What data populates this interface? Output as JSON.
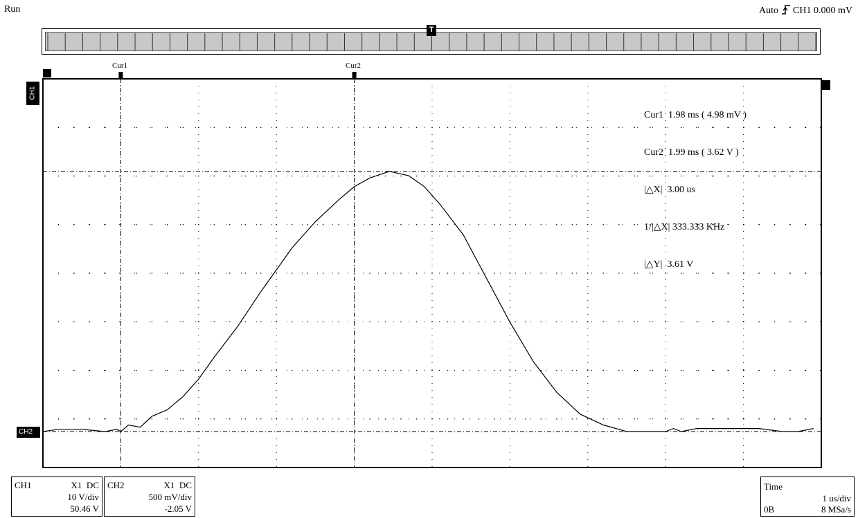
{
  "status": {
    "run_label": "Run",
    "trigger_mode": "Auto",
    "trigger_source": "CH1",
    "trigger_level": "0.000 mV"
  },
  "markers": {
    "trigger_marker": "T",
    "cur1_label": "Cur1",
    "cur2_label": "Cur2",
    "ch1_tag": "CH1",
    "ch2_tag": "CH2"
  },
  "readout": {
    "cur1": "Cur1  1.98 ms ( 4.98 mV )",
    "cur2": "Cur2  1.99 ms ( 3.62 V )",
    "dx": "|△X|  3.00 us",
    "inv_dx": "1/|△X| 333.333 KHz",
    "dy": "|△Y|  3.61 V"
  },
  "ch1_panel": {
    "name": "CH1",
    "probe": "X1  DC",
    "scale": "10 V/div",
    "offset": "50.46 V"
  },
  "ch2_panel": {
    "name": "CH2",
    "probe": "X1  DC",
    "scale": "500 mV/div",
    "offset": "-2.05 V"
  },
  "time_panel": {
    "title": "Time",
    "timebase": "1 us/div",
    "memory": "0B",
    "sample_rate": "8 MSa/s"
  },
  "colors": {
    "background": "#ffffff",
    "foreground": "#000000",
    "scrollbar": "#c8c8c8"
  },
  "chart_data": {
    "type": "line",
    "grid": true,
    "x_divisions": 10,
    "y_divisions": 8,
    "series": [
      {
        "name": "CH2",
        "x_unit": "div",
        "y_unit": "div",
        "x": [
          0.0,
          0.2,
          0.5,
          0.8,
          0.95,
          1.0,
          1.1,
          1.25,
          1.4,
          1.6,
          1.8,
          2.0,
          2.2,
          2.5,
          2.8,
          3.0,
          3.2,
          3.5,
          3.8,
          4.0,
          4.2,
          4.45,
          4.7,
          4.9,
          5.1,
          5.4,
          5.7,
          6.0,
          6.3,
          6.6,
          6.9,
          7.2,
          7.5,
          7.8,
          8.0,
          8.1,
          8.2,
          8.4,
          8.8,
          9.2,
          9.5,
          9.7,
          9.9
        ],
        "y": [
          0.0,
          0.05,
          0.05,
          0.0,
          0.05,
          0.0,
          0.15,
          0.1,
          0.35,
          0.5,
          0.8,
          1.2,
          1.7,
          2.4,
          3.2,
          3.7,
          4.2,
          4.8,
          5.3,
          5.6,
          5.8,
          5.95,
          5.85,
          5.6,
          5.2,
          4.5,
          3.5,
          2.5,
          1.6,
          0.9,
          0.4,
          0.15,
          0.0,
          0.0,
          0.0,
          0.07,
          0.0,
          0.07,
          0.07,
          0.07,
          0.0,
          0.0,
          0.07
        ]
      }
    ],
    "cursors": {
      "cur1_x_div": 1.0,
      "cur2_x_div": 4.0,
      "ch2_ground_div": 0,
      "cursor_y_div": 5.95
    }
  }
}
